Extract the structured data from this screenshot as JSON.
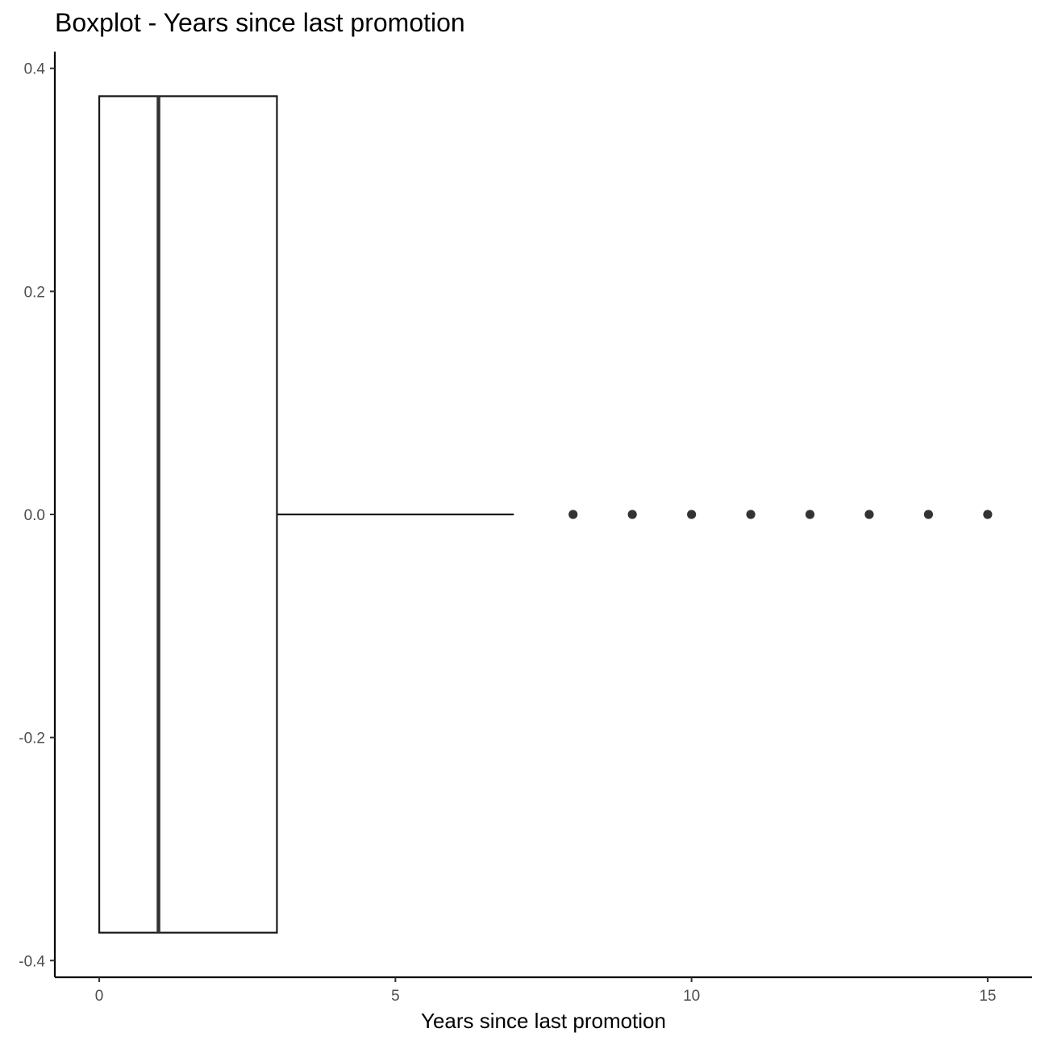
{
  "chart_data": {
    "type": "boxplot",
    "orientation": "horizontal",
    "title": "Boxplot - Years since last promotion",
    "xlabel": "Years since last promotion",
    "ylabel": "",
    "xlim": [
      -0.75,
      15.75
    ],
    "ylim": [
      -0.415,
      0.415
    ],
    "x_ticks": [
      0,
      5,
      10,
      15
    ],
    "x_tick_labels": [
      "0",
      "5",
      "10",
      "15"
    ],
    "y_ticks": [
      0.4,
      0.2,
      0.0,
      -0.2,
      -0.4
    ],
    "y_tick_labels": [
      "0.4",
      "0.2",
      "0.0",
      "-0.2",
      "-0.4"
    ],
    "box": {
      "min": 0,
      "q1": 0,
      "median": 1,
      "q3": 3,
      "whisker_high": 7,
      "y_center": 0.0,
      "y_half_width": 0.375
    },
    "outliers": [
      8,
      9,
      10,
      11,
      12,
      13,
      14,
      15
    ],
    "grid": false,
    "legend": "none",
    "colors": {
      "line": "#1a1a1a",
      "point": "#333333",
      "fill": "#ffffff"
    }
  }
}
